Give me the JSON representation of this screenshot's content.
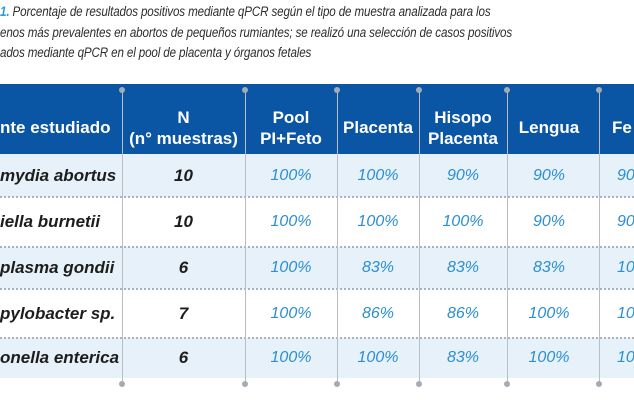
{
  "caption": {
    "number": "1.",
    "line1_rest": " Porcentaje de resultados positivos mediante qPCR según el tipo de muestra analizada para los",
    "line2": "enos más prevalentes en abortos de pequeños rumiantes; se realizó una selección de casos positivos",
    "line3": "ados mediante qPCR en el pool de placenta y órganos fetales"
  },
  "table": {
    "headers": [
      {
        "line1": "nte estudiado",
        "line2": ""
      },
      {
        "line1": "N",
        "line2": "(n° muestras)"
      },
      {
        "line1": "Pool",
        "line2": "PI+Feto"
      },
      {
        "line1": "Placenta",
        "line2": ""
      },
      {
        "line1": "Hisopo",
        "line2": "Placenta"
      },
      {
        "line1": "Lengua",
        "line2": ""
      },
      {
        "line1": "Fe",
        "line2": ""
      }
    ],
    "rows": [
      {
        "agent": "mydia abortus",
        "n": "10",
        "pool": "100%",
        "placenta": "100%",
        "hisopo": "90%",
        "lengua": "90%",
        "feto": "90"
      },
      {
        "agent": "iella burnetii",
        "n": "10",
        "pool": "100%",
        "placenta": "100%",
        "hisopo": "100%",
        "lengua": "90%",
        "feto": "90"
      },
      {
        "agent": "plasma gondii",
        "n": "6",
        "pool": "100%",
        "placenta": "83%",
        "hisopo": "83%",
        "lengua": "83%",
        "feto": "10"
      },
      {
        "agent": "pylobacter sp.",
        "n": "7",
        "pool": "100%",
        "placenta": "86%",
        "hisopo": "86%",
        "lengua": "100%",
        "feto": "10"
      },
      {
        "agent": "onella enterica",
        "n": "6",
        "pool": "100%",
        "placenta": "100%",
        "hisopo": "83%",
        "lengua": "100%",
        "feto": "10"
      }
    ]
  },
  "colors": {
    "header_bg": "#0a55a4",
    "alt_row_bg": "#e6f1fa",
    "percent_text": "#2b8fd2",
    "caption_number": "#2b9bd8"
  }
}
